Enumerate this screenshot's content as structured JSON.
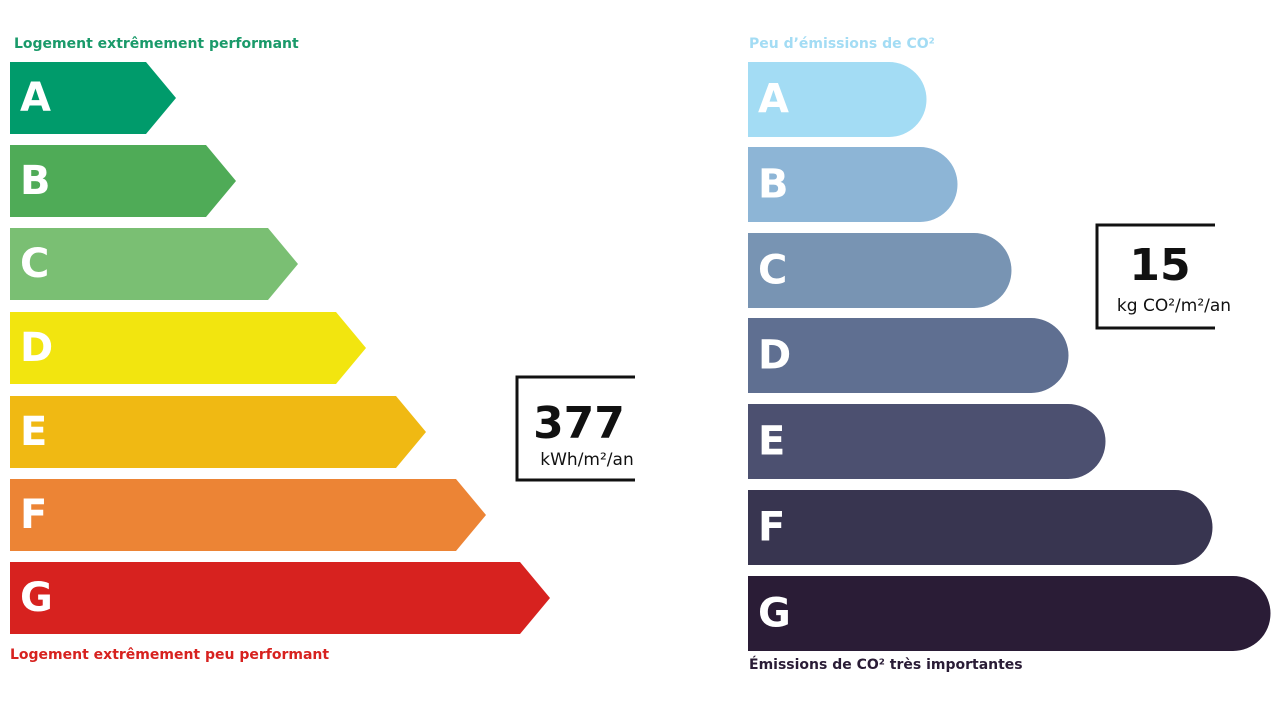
{
  "energy": {
    "top_label": "Logement extrêmement performant",
    "classes": [
      "A",
      "B",
      "C",
      "D",
      "E",
      "F",
      "G"
    ],
    "value": 377,
    "unit": "kWh/m²/an",
    "bottom_label": "Logement extrêmement peu performant"
  },
  "emissions": {
    "top_label": "Peu d’émissions de CO²",
    "classes": [
      "A",
      "B",
      "C",
      "D",
      "E",
      "F",
      "G"
    ],
    "value": 15,
    "unit": "kg CO²/m²/an",
    "bottom_label": "Émissions de CO² très importantes"
  }
}
